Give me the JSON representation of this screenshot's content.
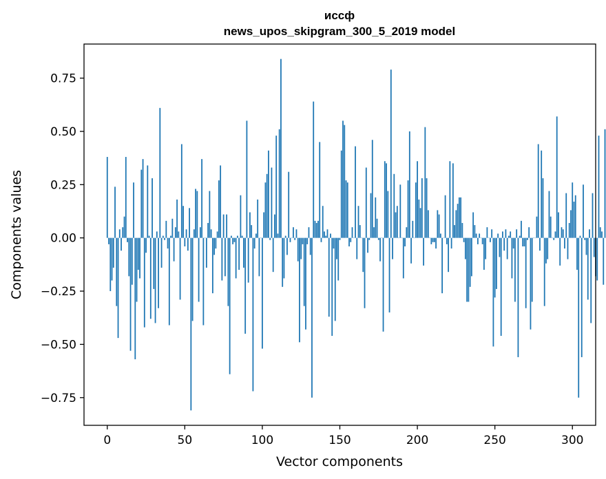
{
  "chart_data": {
    "type": "bar",
    "title_line1": "иссф",
    "title_line2": "news_upos_skipgram_300_5_2019 model",
    "xlabel": "Vector components",
    "ylabel": "Components values",
    "xlim": [
      -15,
      315
    ],
    "ylim": [
      -0.88,
      0.91
    ],
    "xticks": [
      0,
      50,
      100,
      150,
      200,
      250,
      300
    ],
    "xtick_labels": [
      "0",
      "50",
      "100",
      "150",
      "200",
      "250",
      "300"
    ],
    "yticks": [
      -0.75,
      -0.5,
      -0.25,
      0.0,
      0.25,
      0.5,
      0.75
    ],
    "ytick_labels": [
      "−0.75",
      "−0.50",
      "−0.25",
      "0.00",
      "0.25",
      "0.50",
      "0.75"
    ],
    "bar_color": "#1f77b4",
    "values": [
      0.38,
      -0.03,
      -0.25,
      -0.2,
      -0.14,
      0.24,
      -0.32,
      -0.47,
      0.04,
      -0.06,
      0.05,
      0.1,
      0.38,
      -0.02,
      -0.18,
      -0.53,
      -0.22,
      0.26,
      -0.57,
      -0.3,
      -0.15,
      -0.19,
      0.32,
      0.37,
      -0.42,
      -0.07,
      0.34,
      0.01,
      -0.38,
      0.28,
      -0.24,
      -0.4,
      0.03,
      -0.33,
      0.61,
      -0.14,
      0.01,
      -0.01,
      0.08,
      -0.05,
      -0.41,
      0.01,
      0.09,
      -0.11,
      0.05,
      0.18,
      0.03,
      -0.29,
      0.44,
      0.15,
      -0.04,
      0.04,
      -0.06,
      0.14,
      -0.81,
      -0.39,
      0.04,
      0.23,
      0.22,
      -0.3,
      0.05,
      0.37,
      -0.41,
      0.0,
      -0.14,
      0.07,
      0.22,
      0.04,
      -0.26,
      -0.08,
      -0.05,
      0.03,
      0.27,
      0.34,
      -0.2,
      0.11,
      -0.18,
      0.11,
      -0.32,
      -0.64,
      0.01,
      -0.03,
      -0.02,
      -0.19,
      0.01,
      -0.15,
      0.2,
      0.01,
      -0.14,
      -0.45,
      0.55,
      -0.21,
      0.12,
      0.06,
      -0.72,
      -0.05,
      0.02,
      0.18,
      -0.18,
      0.0,
      -0.52,
      0.12,
      0.26,
      0.3,
      0.41,
      -0.01,
      0.33,
      -0.16,
      0.11,
      0.48,
      0.02,
      0.51,
      0.84,
      -0.23,
      -0.19,
      0.01,
      -0.08,
      0.31,
      -0.02,
      0.0,
      0.05,
      -0.01,
      0.04,
      -0.11,
      -0.49,
      -0.1,
      -0.03,
      -0.32,
      -0.43,
      -0.03,
      0.05,
      -0.08,
      -0.75,
      0.64,
      0.08,
      0.07,
      0.08,
      0.45,
      -0.02,
      0.15,
      0.03,
      0.01,
      0.04,
      -0.37,
      0.02,
      -0.46,
      -0.05,
      -0.39,
      -0.1,
      -0.2,
      -0.01,
      0.41,
      0.55,
      0.53,
      0.27,
      0.26,
      -0.04,
      -0.02,
      0.05,
      0.0,
      0.43,
      -0.1,
      0.15,
      0.06,
      0.0,
      -0.16,
      -0.33,
      0.33,
      -0.07,
      -0.01,
      0.21,
      0.46,
      0.05,
      0.19,
      0.09,
      -0.01,
      -0.11,
      0.0,
      -0.44,
      0.36,
      0.35,
      0.22,
      -0.35,
      0.79,
      -0.1,
      0.3,
      0.12,
      0.15,
      0.0,
      0.25,
      0.0,
      -0.19,
      -0.04,
      0.05,
      0.27,
      0.5,
      -0.12,
      0.08,
      0.0,
      0.26,
      0.36,
      0.18,
      0.14,
      0.28,
      -0.13,
      0.52,
      0.28,
      0.13,
      0.0,
      -0.03,
      -0.02,
      -0.02,
      -0.05,
      0.13,
      0.11,
      0.02,
      -0.26,
      0.0,
      0.2,
      -0.03,
      -0.16,
      0.36,
      -0.05,
      0.35,
      0.06,
      0.13,
      0.16,
      0.19,
      0.19,
      0.07,
      -0.02,
      -0.1,
      -0.3,
      -0.3,
      -0.23,
      -0.18,
      0.12,
      0.06,
      0.02,
      -0.03,
      0.02,
      0.0,
      -0.03,
      -0.15,
      -0.1,
      0.05,
      0.0,
      -0.02,
      0.04,
      -0.51,
      -0.28,
      -0.24,
      0.02,
      -0.09,
      -0.46,
      0.03,
      -0.06,
      0.04,
      -0.1,
      0.01,
      0.03,
      -0.19,
      -0.05,
      -0.3,
      0.04,
      -0.56,
      0.01,
      0.08,
      -0.04,
      -0.04,
      -0.33,
      -0.01,
      0.05,
      -0.43,
      -0.3,
      0.0,
      0.0,
      0.1,
      0.44,
      -0.06,
      0.41,
      0.28,
      -0.32,
      -0.12,
      -0.1,
      0.22,
      0.1,
      0.0,
      -0.01,
      0.03,
      0.57,
      0.12,
      -0.13,
      0.05,
      0.04,
      -0.05,
      0.21,
      -0.1,
      0.07,
      0.13,
      0.26,
      0.17,
      0.2,
      -0.15,
      -0.75,
      0.01,
      -0.56,
      0.25,
      -0.01,
      -0.08,
      -0.29,
      0.04,
      -0.4,
      0.21,
      -0.09,
      -0.18,
      -0.2,
      0.48,
      0.05,
      0.03,
      -0.22,
      0.51
    ]
  }
}
